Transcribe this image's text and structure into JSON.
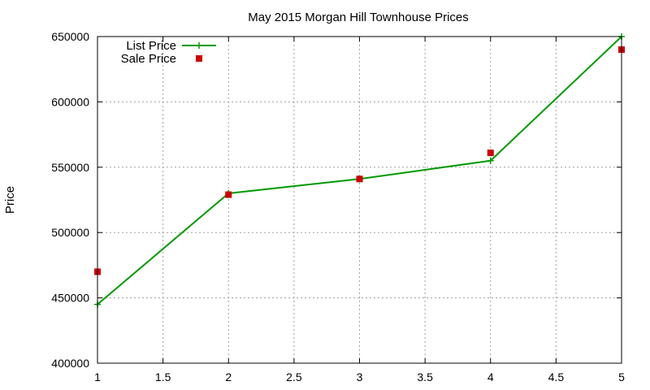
{
  "chart_data": {
    "type": "line",
    "title": "May 2015 Morgan Hill Townhouse Prices",
    "xlabel": "",
    "ylabel": "Price",
    "xlim": [
      1,
      5
    ],
    "ylim": [
      400000,
      650000
    ],
    "xticks": [
      1,
      1.5,
      2,
      2.5,
      3,
      3.5,
      4,
      4.5,
      5
    ],
    "xtick_labels": [
      "1",
      "1.5",
      "2",
      "2.5",
      "3",
      "3.5",
      "4",
      "4.5",
      "5"
    ],
    "yticks": [
      400000,
      450000,
      500000,
      550000,
      600000,
      650000
    ],
    "ytick_labels": [
      "400000",
      "450000",
      "500000",
      "550000",
      "600000",
      "650000"
    ],
    "grid": true,
    "legend_position": "top-left",
    "series": [
      {
        "name": "List Price",
        "style": "linespoints",
        "marker": "plus",
        "color": "#009900",
        "x": [
          1,
          2,
          3,
          4,
          5
        ],
        "y": [
          445000,
          530000,
          541000,
          555000,
          650000
        ]
      },
      {
        "name": "Sale Price",
        "style": "points",
        "marker": "square",
        "color": "#cc0000",
        "x": [
          1,
          2,
          3,
          4,
          5
        ],
        "y": [
          470000,
          529000,
          541000,
          561000,
          640000
        ]
      }
    ]
  }
}
